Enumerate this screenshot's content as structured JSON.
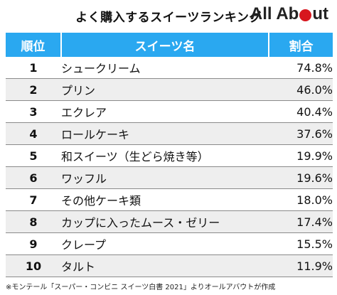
{
  "header": {
    "title": "よく購入するスイーツランキング",
    "brand_left": "All Ab",
    "brand_right": "ut"
  },
  "colors": {
    "header_bg": "#2aa8f0",
    "stripe": "#eeeeee",
    "brand_red": "#d7161e"
  },
  "chart_data": {
    "type": "table",
    "title": "よく購入するスイーツランキング",
    "columns": [
      "順位",
      "スイーツ名",
      "割合"
    ],
    "rows": [
      [
        "1",
        "シュークリーム",
        "74.8%"
      ],
      [
        "2",
        "プリン",
        "46.0%"
      ],
      [
        "3",
        "エクレア",
        "40.4%"
      ],
      [
        "4",
        "ロールケーキ",
        "37.6%"
      ],
      [
        "5",
        "和スイーツ（生どら焼き等）",
        "19.9%"
      ],
      [
        "6",
        "ワッフル",
        "19.6%"
      ],
      [
        "7",
        "その他ケーキ類",
        "18.0%"
      ],
      [
        "8",
        "カップに入ったムース・ゼリー",
        "17.4%"
      ],
      [
        "9",
        "クレープ",
        "15.5%"
      ],
      [
        "10",
        "タルト",
        "11.9%"
      ]
    ]
  },
  "footnote": "※モンテール「スーパー・コンビニ スイーツ白書 2021」よりオールアバウトが作成"
}
